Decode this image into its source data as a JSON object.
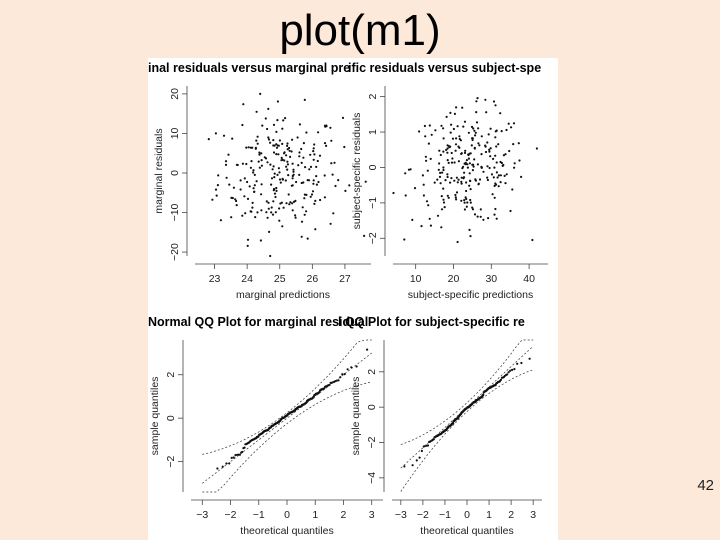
{
  "slide": {
    "title": "plot(m1)",
    "page_number": "42",
    "background": "#fde9d9"
  },
  "chart_data": [
    {
      "type": "scatter",
      "title": "inal residuals versus marginal pre",
      "xlabel": "marginal predictions",
      "ylabel": "marginal residuals",
      "xticks": [
        23,
        24,
        25,
        26,
        27
      ],
      "yticks": [
        -20,
        -10,
        0,
        10,
        20
      ],
      "xlim": [
        22.4,
        27.8
      ],
      "ylim": [
        -21,
        22
      ],
      "grid": false
    },
    {
      "type": "scatter",
      "title": "ific residuals versus subject-spe",
      "xlabel": "subject-specific predictions",
      "ylabel": "subject-specific residuals",
      "xticks": [
        10,
        20,
        30,
        40
      ],
      "yticks": [
        -2,
        -1,
        0,
        1,
        2
      ],
      "xlim": [
        4,
        45
      ],
      "ylim": [
        -2.5,
        2.3
      ],
      "grid": false
    },
    {
      "type": "scatter",
      "title": "Normal QQ Plot for marginal residual",
      "xlabel": "theoretical quantiles",
      "ylabel": "sample quantiles",
      "xticks": [
        -3,
        -2,
        -1,
        0,
        1,
        2,
        3
      ],
      "yticks": [
        -2,
        0,
        2
      ],
      "xlim": [
        -3.4,
        3.4
      ],
      "ylim": [
        -3.4,
        3.6
      ],
      "grid": false
    },
    {
      "type": "scatter",
      "title": "l QQ Plot for subject-specific re",
      "xlabel": "theoretical quantiles",
      "ylabel": "sample quantiles",
      "xticks": [
        -3,
        -2,
        -1,
        0,
        1,
        2,
        3
      ],
      "yticks": [
        -4,
        -2,
        0,
        2
      ],
      "xlim": [
        -3.4,
        3.4
      ],
      "ylim": [
        -4.8,
        3.8
      ],
      "grid": false
    }
  ]
}
